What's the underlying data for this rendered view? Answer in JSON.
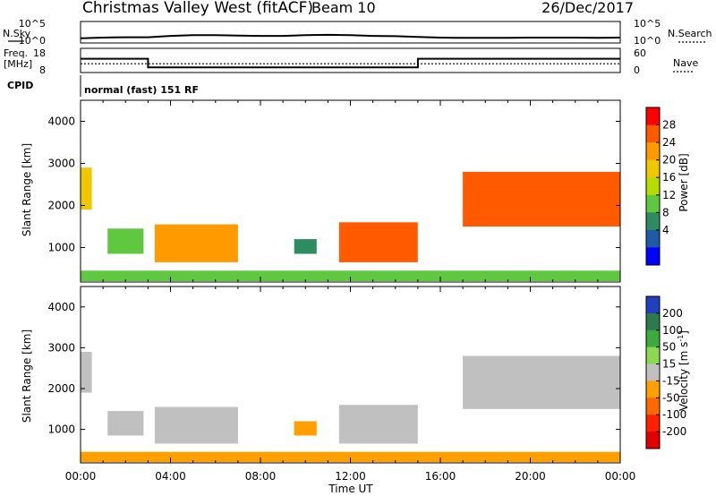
{
  "header": {
    "title": "Christmas Valley West (fitACF)",
    "beam": "Beam 10",
    "date": "26/Dec/2017"
  },
  "top_panel": {
    "nsky_label": "N.Sky",
    "nsearch_label": "N.Search",
    "freq_label": "Freq.",
    "freq_unit": "[MHz]",
    "nave_label": "Nave",
    "cpid_label": "CPID",
    "cpid_text": "normal (fast) 151 RF",
    "noise_ticks": [
      "10^5",
      "10^0"
    ],
    "freq_ticks": [
      "18",
      "8"
    ],
    "nave_ticks": [
      "60",
      "0"
    ]
  },
  "x_axis": {
    "label": "Time UT",
    "ticks": [
      "00:00",
      "04:00",
      "08:00",
      "12:00",
      "16:00",
      "20:00",
      "00:00"
    ]
  },
  "colorbar_power": {
    "label": "Power [dB]",
    "ticks": [
      "28",
      "24",
      "20",
      "16",
      "12",
      "8",
      "4"
    ],
    "colors": [
      "#ff0000",
      "#ff5a00",
      "#ff9a00",
      "#f0c800",
      "#b8dc00",
      "#60c840",
      "#2e8c60",
      "#1e5aa8",
      "#0000ff"
    ]
  },
  "colorbar_velocity": {
    "label": "Velocity [m s",
    "label_sup": "-1",
    "label_close": "]",
    "ticks": [
      "200",
      "100",
      "50",
      "15",
      "-15",
      "-50",
      "-100",
      "-200"
    ],
    "colors": [
      "#2040c0",
      "#2e7a50",
      "#3caa3c",
      "#8cd850",
      "#c0c0c0",
      "#ffa000",
      "#ff6a00",
      "#ff2000",
      "#e00000"
    ]
  },
  "chart_data": [
    {
      "type": "line",
      "title": "Christmas Valley West (fitACF)",
      "xlabel": "Time UT",
      "x_range_hours": [
        0,
        24
      ],
      "series": [
        {
          "name": "N.Sky",
          "x": [
            0,
            1,
            2,
            3,
            4,
            5,
            6,
            7,
            8,
            9,
            10,
            11,
            12,
            13,
            14,
            15,
            16,
            17,
            18,
            19,
            20,
            21,
            22,
            23,
            24
          ],
          "y_log10": [
            0.6,
            0.8,
            0.9,
            0.9,
            1.3,
            1.5,
            1.5,
            1.4,
            1.3,
            1.3,
            1.5,
            1.6,
            1.5,
            1.3,
            1.2,
            1.0,
            0.8,
            0.7,
            0.7,
            0.7,
            0.8,
            0.8,
            0.8,
            0.7,
            0.8
          ]
        },
        {
          "name": "Freq. [MHz]",
          "x": [
            0,
            3,
            3,
            15,
            15,
            24
          ],
          "y": [
            14,
            14,
            10,
            10,
            14,
            14
          ]
        },
        {
          "name": "Nave",
          "x": [
            0,
            24
          ],
          "y": [
            22,
            22
          ]
        }
      ],
      "annotation": "normal (fast) 151 RF"
    },
    {
      "type": "heatmap",
      "title": "Beam 10",
      "ylabel": "Slant Range [km]",
      "xlabel": "Time UT",
      "xlim_hours": [
        0,
        24
      ],
      "ylim_km": [
        180,
        4500
      ],
      "yticks": [
        1000,
        2000,
        3000,
        4000
      ],
      "color_quantity": "Power [dB]",
      "color_range": [
        0,
        32
      ],
      "regions": [
        {
          "t_start": 0.0,
          "t_end": 0.5,
          "r_min": 1900,
          "r_max": 2900,
          "power_db": 18
        },
        {
          "t_start": 1.2,
          "t_end": 2.8,
          "r_min": 850,
          "r_max": 1450,
          "power_db": 12
        },
        {
          "t_start": 3.3,
          "t_end": 7.0,
          "r_min": 650,
          "r_max": 1550,
          "power_db": 24
        },
        {
          "t_start": 9.5,
          "t_end": 10.5,
          "r_min": 850,
          "r_max": 1200,
          "power_db": 8
        },
        {
          "t_start": 11.5,
          "t_end": 15.0,
          "r_min": 650,
          "r_max": 1600,
          "power_db": 26
        },
        {
          "t_start": 17.0,
          "t_end": 24.0,
          "r_min": 1500,
          "r_max": 2800,
          "power_db": 27
        },
        {
          "t_start": 0.0,
          "t_end": 24.0,
          "r_min": 200,
          "r_max": 450,
          "power_db": 14
        }
      ]
    },
    {
      "type": "heatmap",
      "title": "Beam 10",
      "ylabel": "Slant Range [km]",
      "xlabel": "Time UT",
      "xlim_hours": [
        0,
        24
      ],
      "ylim_km": [
        180,
        4500
      ],
      "yticks": [
        1000,
        2000,
        3000,
        4000
      ],
      "color_quantity": "Velocity [m s-1]",
      "color_range": [
        -250,
        250
      ],
      "regions": [
        {
          "t_start": 0.0,
          "t_end": 0.5,
          "r_min": 1900,
          "r_max": 2900,
          "velocity": 0
        },
        {
          "t_start": 1.2,
          "t_end": 2.8,
          "r_min": 850,
          "r_max": 1450,
          "velocity": 0
        },
        {
          "t_start": 3.3,
          "t_end": 7.0,
          "r_min": 650,
          "r_max": 1550,
          "velocity": 0
        },
        {
          "t_start": 9.5,
          "t_end": 10.5,
          "r_min": 850,
          "r_max": 1200,
          "velocity": -80
        },
        {
          "t_start": 11.5,
          "t_end": 15.0,
          "r_min": 650,
          "r_max": 1600,
          "velocity": 0
        },
        {
          "t_start": 17.0,
          "t_end": 24.0,
          "r_min": 1500,
          "r_max": 2800,
          "velocity": 0
        },
        {
          "t_start": 0.0,
          "t_end": 24.0,
          "r_min": 200,
          "r_max": 450,
          "velocity": -60
        }
      ]
    }
  ]
}
